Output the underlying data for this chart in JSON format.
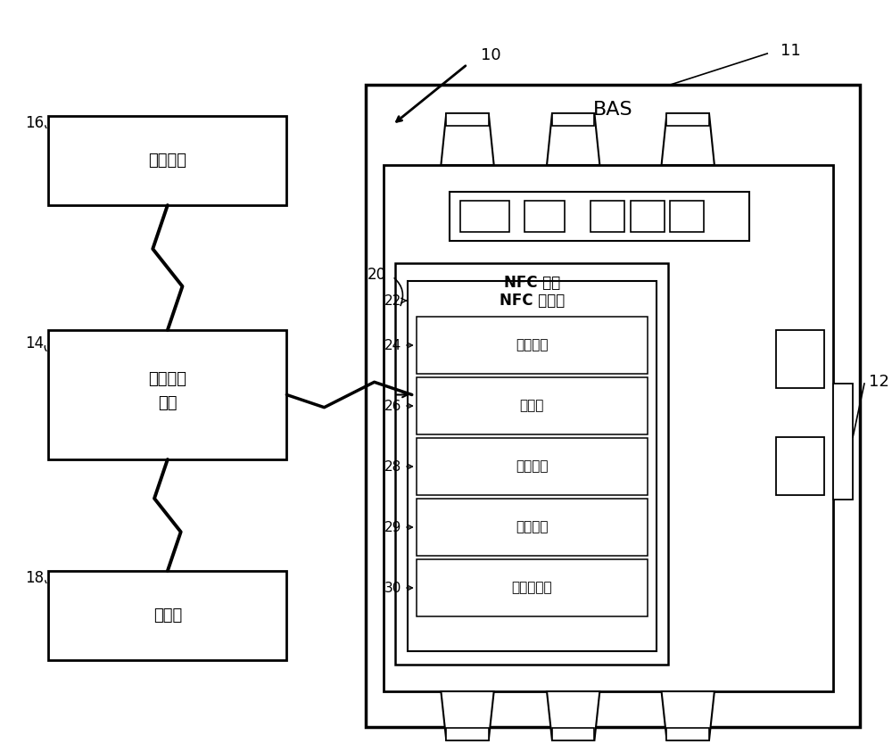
{
  "bg_color": "#ffffff",
  "labels": {
    "storage": "存储介质",
    "mobile_line1": "移动计算",
    "mobile_line2": "装置",
    "printer": "打印机",
    "bas": "BAS",
    "nfc_tag": "NFC 标签",
    "nfc_memory": "NFC 存储器",
    "identity": "身份信息",
    "wiring": "布线图",
    "cable": "线缆标签",
    "manual": "手动指令",
    "floor": "平面布置图"
  },
  "refs": {
    "main": "10",
    "bas_box": "11",
    "controller": "12",
    "nfc_tag": "20",
    "nfc_memory": "22",
    "identity": "24",
    "wiring": "26",
    "cable": "28",
    "manual": "29",
    "floor": "30",
    "storage": "16",
    "mobile": "14",
    "printer": "18"
  }
}
